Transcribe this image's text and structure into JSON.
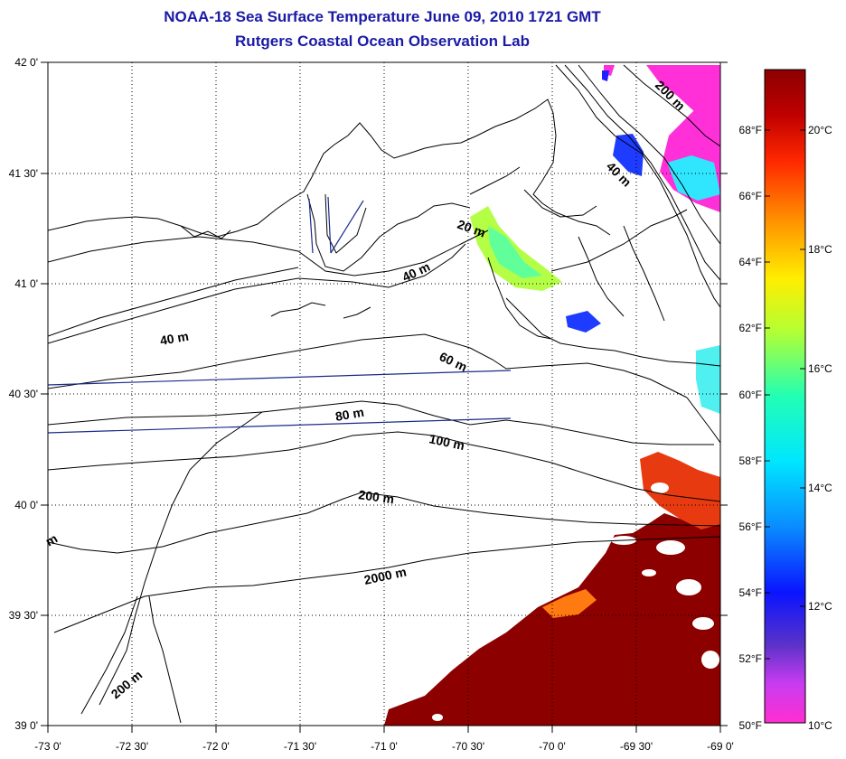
{
  "title": {
    "line1": "NOAA-18 Sea Surface Temperature June 09, 2010 1721 GMT",
    "line2": "Rutgers Coastal Ocean Observation Lab"
  },
  "map": {
    "lat_labels": [
      "42 0'",
      "41 30'",
      "41 0'",
      "40 30'",
      "40 0'",
      "39 30'",
      "39 0'"
    ],
    "lon_labels": [
      "-73 0'",
      "-72 30'",
      "-72 0'",
      "-71 30'",
      "-71 0'",
      "-70 30'",
      "-70 0'",
      "-69 30'",
      "-69 0'"
    ],
    "depth_labels": [
      "200 m",
      "40 m",
      "20 m",
      "40 m",
      "40 m",
      "60 m",
      "80 m",
      "100 m",
      "200 m",
      "2000 m",
      "200 m",
      "m"
    ],
    "colors": {
      "land_line": "#000000",
      "transect": "#1a2a8a",
      "warm_water": "#8c0000"
    }
  },
  "colorbar": {
    "f_labels": [
      "68°F",
      "66°F",
      "64°F",
      "62°F",
      "60°F",
      "58°F",
      "56°F",
      "54°F",
      "52°F",
      "50°F"
    ],
    "c_labels": [
      "20°C",
      "18°C",
      "16°C",
      "14°C",
      "12°C",
      "10°C"
    ]
  }
}
